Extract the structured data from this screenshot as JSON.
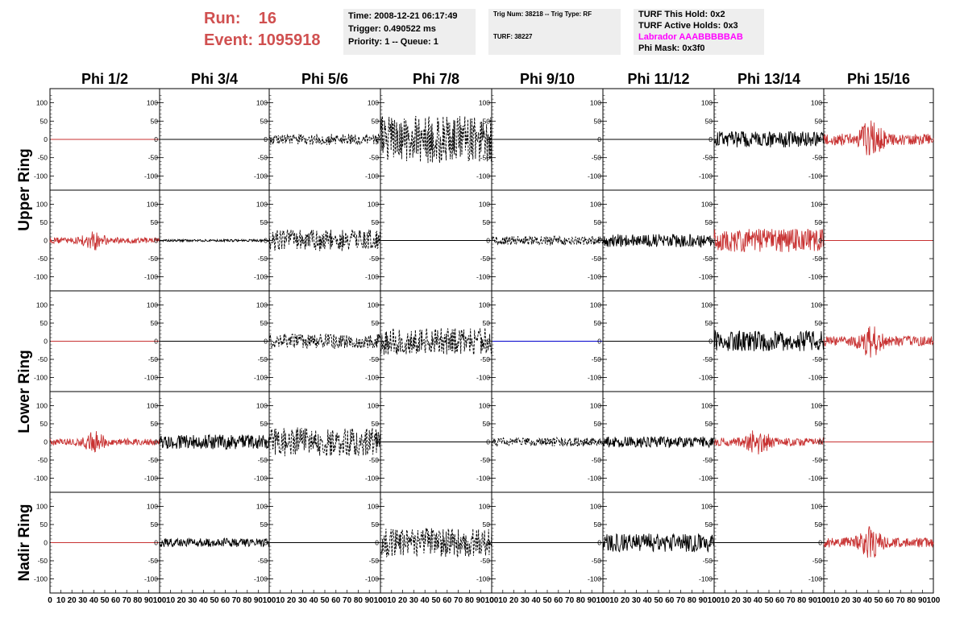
{
  "header": {
    "run_label": "Run:",
    "run_value": "16",
    "event_label": "Event:",
    "event_value": "1095918"
  },
  "info_time": {
    "time": "Time: 2008-12-21 06:17:49",
    "trigger": "Trigger: 0.490522 ms",
    "priority": "Priority: 1 -- Queue: 1"
  },
  "info_trig": {
    "trig": "Trig Num: 38218 -- Trig Type: RF",
    "turf": "TURF: 38227"
  },
  "info_turf": {
    "hold": "TURF This Hold: 0x2",
    "active": "TURF Active Holds: 0x3",
    "labrador": "Labrador AAABBBBBAB",
    "phimask": "Phi Mask: 0x3f0"
  },
  "colors": {
    "red": "#c83232",
    "black": "#000000",
    "blue": "#0000cc",
    "magenta": "#ff00ff"
  },
  "chart_data": {
    "type": "line",
    "columns": [
      "Phi 1/2",
      "Phi 3/4",
      "Phi 5/6",
      "Phi 7/8",
      "Phi 9/10",
      "Phi 11/12",
      "Phi 13/14",
      "Phi 15/16"
    ],
    "ring_labels": [
      "Upper Ring",
      "Lower Ring",
      "Nadir Ring"
    ],
    "xlim": [
      0,
      100
    ],
    "ylim": [
      -130,
      130
    ],
    "y_ticks": [
      -100,
      -50,
      0,
      50,
      100
    ],
    "x_tick_labels": [
      "0",
      "10",
      "20",
      "30",
      "40",
      "50",
      "60",
      "70",
      "80",
      "90",
      "100"
    ],
    "rows": [
      [
        {
          "color": "red",
          "style": "flat",
          "amp": 0
        },
        {
          "color": "black",
          "style": "flat",
          "amp": 0
        },
        {
          "color": "black",
          "style": "dashed",
          "amp": 15
        },
        {
          "color": "black",
          "style": "dashed",
          "amp": 65
        },
        {
          "color": "black",
          "style": "flat",
          "amp": 0
        },
        {
          "color": "black",
          "style": "flat",
          "amp": 0
        },
        {
          "color": "black",
          "style": "solid",
          "amp": 22
        },
        {
          "color": "red",
          "style": "burst",
          "amp": 35
        }
      ],
      [
        {
          "color": "red",
          "style": "burst",
          "amp": 18
        },
        {
          "color": "black",
          "style": "solid",
          "amp": 3
        },
        {
          "color": "black",
          "style": "dashed",
          "amp": 30
        },
        {
          "color": "black",
          "style": "flat",
          "amp": 0
        },
        {
          "color": "black",
          "style": "dashed",
          "amp": 12
        },
        {
          "color": "black",
          "style": "solid",
          "amp": 18
        },
        {
          "color": "red",
          "style": "solid",
          "amp": 32
        },
        {
          "color": "red",
          "style": "flat",
          "amp": 0
        }
      ],
      [
        {
          "color": "red",
          "style": "flat",
          "amp": 0
        },
        {
          "color": "black",
          "style": "flat",
          "amp": 0
        },
        {
          "color": "black",
          "style": "dashed",
          "amp": 20
        },
        {
          "color": "black",
          "style": "dashed",
          "amp": 38
        },
        {
          "color": "blue",
          "style": "flat",
          "amp": 0
        },
        {
          "color": "black",
          "style": "flat",
          "amp": 0
        },
        {
          "color": "black",
          "style": "solid",
          "amp": 28
        },
        {
          "color": "red",
          "style": "burst",
          "amp": 30
        }
      ],
      [
        {
          "color": "red",
          "style": "burst",
          "amp": 20
        },
        {
          "color": "black",
          "style": "solid",
          "amp": 20
        },
        {
          "color": "black",
          "style": "dashed",
          "amp": 40
        },
        {
          "color": "black",
          "style": "flat",
          "amp": 0
        },
        {
          "color": "black",
          "style": "dashed",
          "amp": 12
        },
        {
          "color": "black",
          "style": "solid",
          "amp": 15
        },
        {
          "color": "red",
          "style": "burst",
          "amp": 25
        },
        {
          "color": "red",
          "style": "flat",
          "amp": 0
        }
      ],
      [
        {
          "color": "red",
          "style": "flat",
          "amp": 0
        },
        {
          "color": "black",
          "style": "solid",
          "amp": 12
        },
        {
          "color": "black",
          "style": "flat",
          "amp": 0
        },
        {
          "color": "black",
          "style": "dashed",
          "amp": 40
        },
        {
          "color": "black",
          "style": "flat",
          "amp": 0
        },
        {
          "color": "black",
          "style": "solid",
          "amp": 25
        },
        {
          "color": "black",
          "style": "flat",
          "amp": 0
        },
        {
          "color": "red",
          "style": "burst",
          "amp": 30
        }
      ]
    ]
  }
}
